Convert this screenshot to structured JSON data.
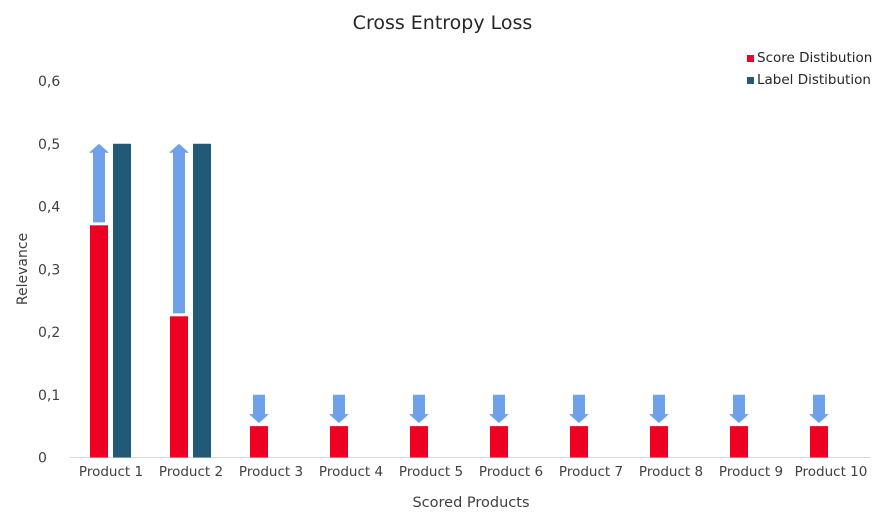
{
  "chart_data": {
    "type": "bar",
    "title": "Cross Entropy Loss",
    "xlabel": "Scored Products",
    "ylabel": "Relevance",
    "ylim": [
      0,
      0.6
    ],
    "yticks": [
      "0",
      "0,1",
      "0,2",
      "0,3",
      "0,4",
      "0,5",
      "0,6"
    ],
    "ytick_values": [
      0,
      0.1,
      0.2,
      0.3,
      0.4,
      0.5,
      0.6
    ],
    "grid": false,
    "legend_position": "top-right",
    "categories": [
      "Product 1",
      "Product 2",
      "Product 3",
      "Product 4",
      "Product 5",
      "Product 6",
      "Product 7",
      "Product 8",
      "Product 9",
      "Product 10"
    ],
    "series": [
      {
        "name": "Score Distibution",
        "color": "#ee0022",
        "values": [
          0.37,
          0.225,
          0.05,
          0.05,
          0.05,
          0.05,
          0.05,
          0.05,
          0.05,
          0.05
        ]
      },
      {
        "name": "Label Distibution",
        "color": "#215a78",
        "values": [
          0.5,
          0.5,
          0,
          0,
          0,
          0,
          0,
          0,
          0,
          0
        ]
      }
    ],
    "annotations": {
      "type": "arrows",
      "color": "#6fa1ea",
      "arrows": [
        {
          "category": "Product 1",
          "from": 0.37,
          "to": 0.5
        },
        {
          "category": "Product 2",
          "from": 0.225,
          "to": 0.5
        },
        {
          "category": "Product 3",
          "from": 0.1,
          "to": 0.05
        },
        {
          "category": "Product 4",
          "from": 0.1,
          "to": 0.05
        },
        {
          "category": "Product 5",
          "from": 0.1,
          "to": 0.05
        },
        {
          "category": "Product 6",
          "from": 0.1,
          "to": 0.05
        },
        {
          "category": "Product 7",
          "from": 0.1,
          "to": 0.05
        },
        {
          "category": "Product 8",
          "from": 0.1,
          "to": 0.05
        },
        {
          "category": "Product 9",
          "from": 0.1,
          "to": 0.05
        },
        {
          "category": "Product 10",
          "from": 0.1,
          "to": 0.05
        }
      ]
    }
  }
}
